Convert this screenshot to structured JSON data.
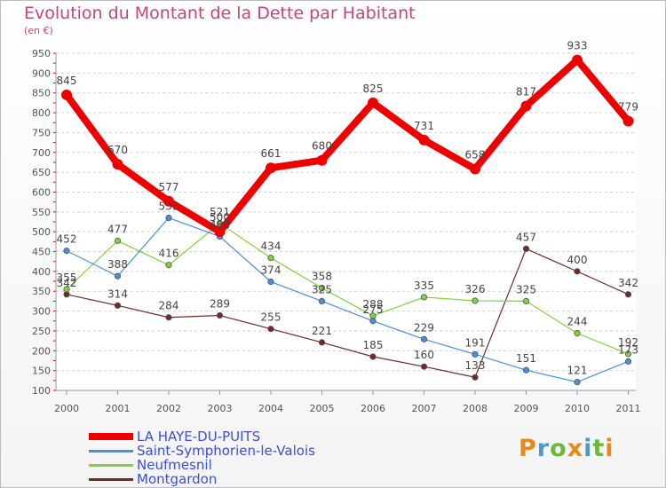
{
  "title": "Evolution du Montant de la Dette par Habitant",
  "unit_label": "(en €)",
  "logo": {
    "text": "Proxiti",
    "colors": [
      "#e88a1a",
      "#4a9ad8",
      "#6aba3a",
      "#e88a1a",
      "#4a9ad8",
      "#6aba3a",
      "#e88a1a"
    ]
  },
  "chart_data": {
    "type": "line",
    "title": "Evolution du Montant de la Dette par Habitant",
    "ylabel": "(en €)",
    "xlabel": "",
    "x": [
      "2000",
      "2001",
      "2002",
      "2003",
      "2004",
      "2005",
      "2006",
      "2007",
      "2008",
      "2009",
      "2010",
      "2011"
    ],
    "ylim": [
      100,
      950
    ],
    "yticks": [
      100,
      150,
      200,
      250,
      300,
      350,
      400,
      450,
      500,
      550,
      600,
      650,
      700,
      750,
      800,
      850,
      900,
      950
    ],
    "grid": "horizontal dashed",
    "legend": "bottom-left",
    "series": [
      {
        "name": "LA HAYE-DU-PUITS",
        "color": "#ee0000",
        "values": [
          845,
          670,
          577,
          500,
          661,
          680,
          825,
          731,
          658,
          817,
          933,
          779
        ]
      },
      {
        "name": "Saint-Symphorien-le-Valois",
        "color": "#4a8ed8",
        "values": [
          452,
          388,
          535,
          488,
          374,
          325,
          275,
          229,
          191,
          151,
          121,
          173
        ]
      },
      {
        "name": "Neufmesnil",
        "color": "#80d040",
        "values": [
          355,
          477,
          416,
          521,
          434,
          358,
          288,
          335,
          326,
          325,
          244,
          192
        ]
      },
      {
        "name": "Montgardon",
        "color": "#6e2b2b",
        "values": [
          342,
          314,
          284,
          289,
          255,
          221,
          185,
          160,
          133,
          457,
          400,
          342
        ]
      }
    ]
  }
}
